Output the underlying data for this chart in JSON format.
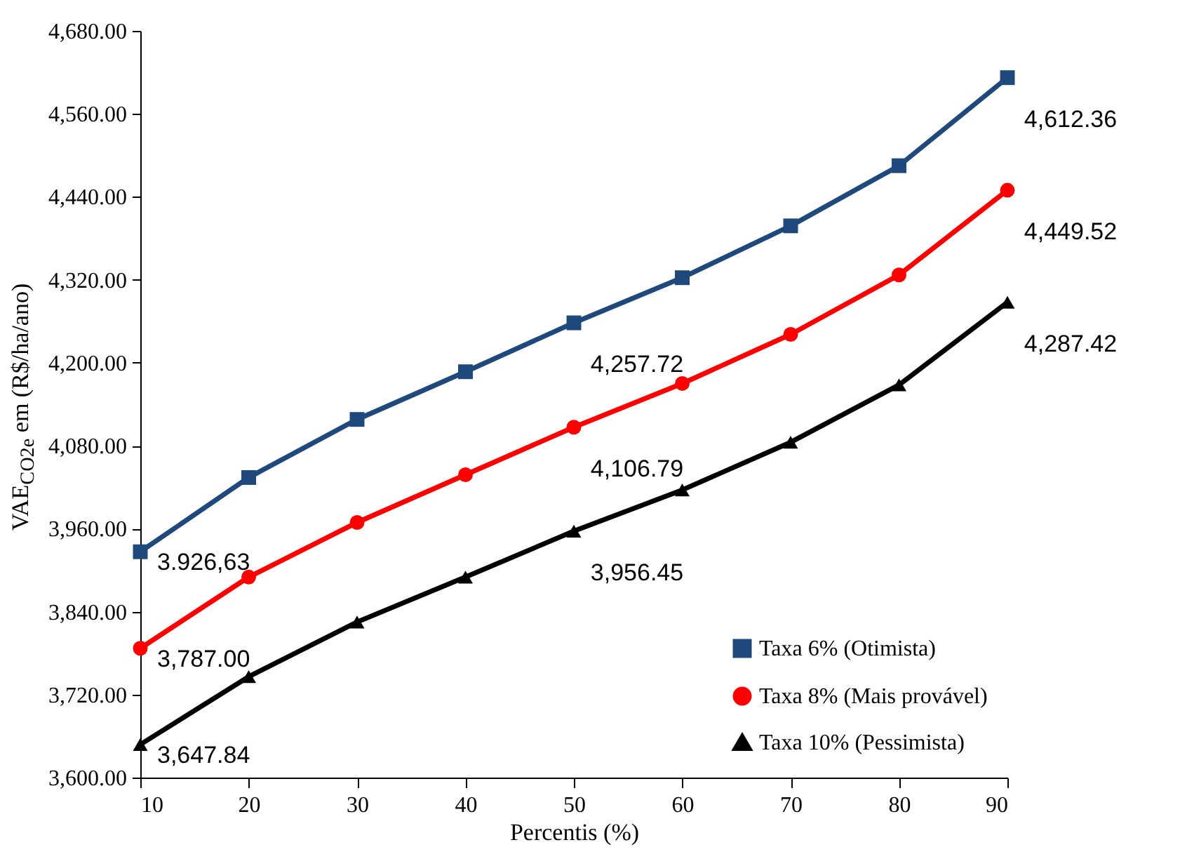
{
  "chart_data": {
    "type": "line",
    "xlabel": "Percentis (%)",
    "ylabel": "VAE$_{CO2e}$ em (R$/ha/ano)",
    "x": [
      10,
      20,
      30,
      40,
      50,
      60,
      70,
      80,
      90
    ],
    "xlim": [
      10,
      90
    ],
    "xticks": [
      10,
      20,
      30,
      40,
      50,
      60,
      70,
      80,
      90
    ],
    "ylim": [
      3600,
      4680
    ],
    "yticks": [
      {
        "value": 3600,
        "label": "3,600.00"
      },
      {
        "value": 3720,
        "label": "3,720.00"
      },
      {
        "value": 3840,
        "label": "3,840.00"
      },
      {
        "value": 3960,
        "label": "3,960.00"
      },
      {
        "value": 4080,
        "label": "4,080.00"
      },
      {
        "value": 4200,
        "label": "4,200.00"
      },
      {
        "value": 4320,
        "label": "4,320.00"
      },
      {
        "value": 4440,
        "label": "4,440.00"
      },
      {
        "value": 4560,
        "label": "4,560.00"
      },
      {
        "value": 4680,
        "label": "4,680.00"
      }
    ],
    "series": [
      {
        "name": "Taxa 6% (Otimista)",
        "color": "#1f497d",
        "marker": "square",
        "values": [
          3926.63,
          4034,
          4118,
          4187,
          4257.72,
          4323,
          4398,
          4485,
          4612.36
        ],
        "value_labels": [
          "3.926,63",
          null,
          null,
          null,
          "4,257.72",
          null,
          null,
          null,
          "4,612.36"
        ]
      },
      {
        "name": "Taxa 8% (Mais provável)",
        "color": "#ff0000",
        "marker": "circle",
        "values": [
          3787.0,
          3890,
          3969,
          4038,
          4106.79,
          4170,
          4241,
          4327,
          4449.52
        ],
        "value_labels": [
          "3,787.00",
          null,
          null,
          null,
          "4,106.79",
          null,
          null,
          null,
          "4,449.52"
        ]
      },
      {
        "name": "Taxa 10% (Pessimista)",
        "color": "#000000",
        "marker": "triangle",
        "values": [
          3647.84,
          3746,
          3825,
          3890,
          3956.45,
          4016,
          4085,
          4168,
          4287.42
        ],
        "value_labels": [
          "3,647.84",
          null,
          null,
          null,
          "3,956.45",
          null,
          null,
          null,
          "4,287.42"
        ]
      }
    ],
    "grid": false,
    "legend": "bottom right",
    "line_style": "solid"
  }
}
